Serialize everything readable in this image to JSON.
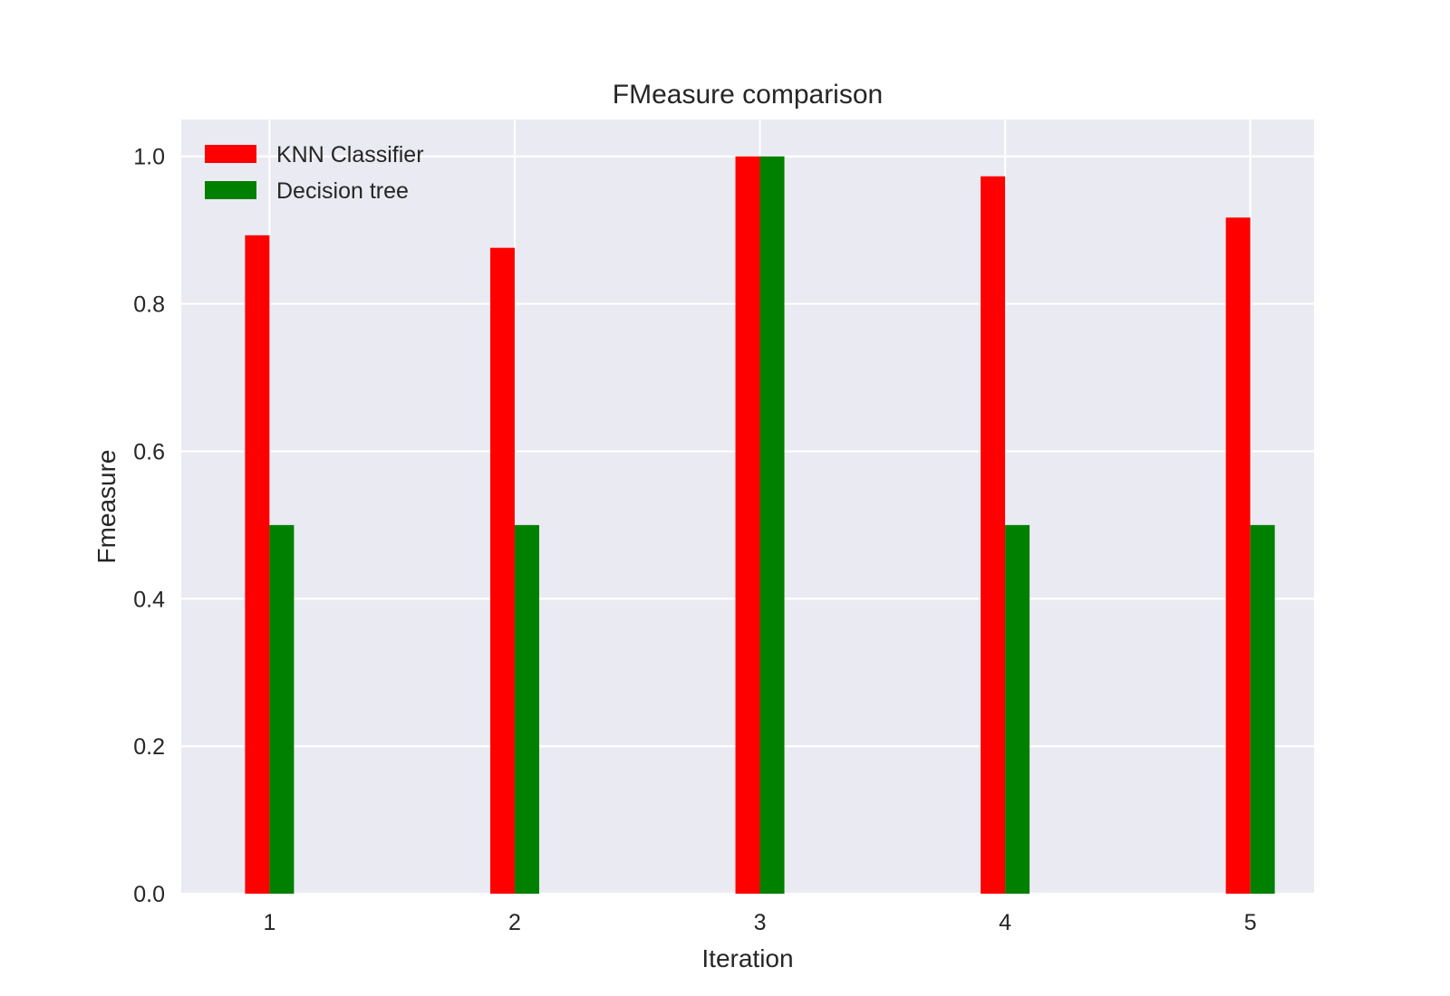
{
  "chart_data": {
    "type": "bar",
    "title": "FMeasure comparison",
    "xlabel": "Iteration",
    "ylabel": "Fmeasure",
    "categories": [
      "1",
      "2",
      "3",
      "4",
      "5"
    ],
    "x_values": [
      1,
      2,
      3,
      4,
      5
    ],
    "xlim": [
      0.64,
      5.26
    ],
    "ylim": [
      0.0,
      1.05
    ],
    "yticks": [
      0.0,
      0.2,
      0.4,
      0.6,
      0.8,
      1.0
    ],
    "ytick_labels": [
      "0.0",
      "0.2",
      "0.4",
      "0.6",
      "0.8",
      "1.0"
    ],
    "grid": true,
    "legend_position": "top-left",
    "series": [
      {
        "name": "KNN Classifier",
        "color": "#ff0000",
        "values": [
          0.893,
          0.876,
          1.0,
          0.973,
          0.917
        ]
      },
      {
        "name": "Decision tree",
        "color": "#008000",
        "values": [
          0.5,
          0.5,
          1.0,
          0.5,
          0.5
        ]
      }
    ],
    "style": {
      "plot_background": "#eaeaf2",
      "grid_color": "#ffffff",
      "text_color": "#262626"
    }
  }
}
